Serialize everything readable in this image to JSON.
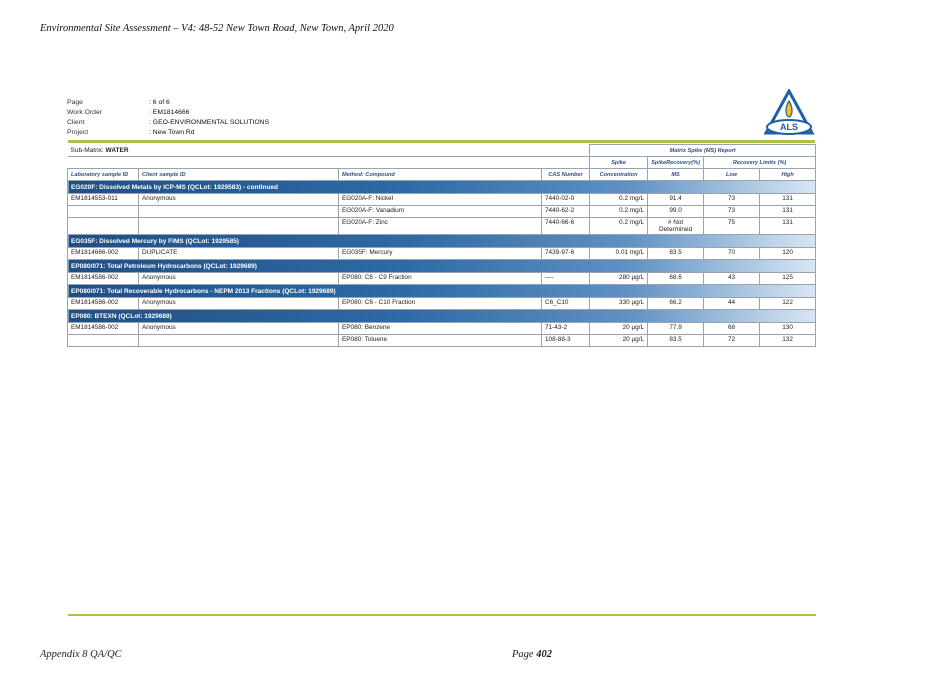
{
  "doc_header": "Environmental Site Assessment – V4: 48-52 New Town Road, New Town, April 2020",
  "meta": [
    {
      "label": "Page",
      "value": "6 of 6"
    },
    {
      "label": "Work Order",
      "value": "EM1814666"
    },
    {
      "label": "Client",
      "value": "GEO-ENVIRONMENTAL SOLUTIONS"
    },
    {
      "label": "Project",
      "value": "New Town Rd"
    }
  ],
  "logo_text": "ALS",
  "submatrix_label": "Sub-Matrix:",
  "submatrix_value": "WATER",
  "report_title": "Matrix Spike (MS) Report",
  "headers": {
    "spike": "Spike",
    "spike_recovery": "SpikeRecovery(%)",
    "recovery_limits": "Recovery Limits (%)",
    "lab_id": "Laboratory sample ID",
    "client_id": "Client sample ID",
    "method": "Method: Compound",
    "cas": "CAS Number",
    "concentration": "Concentration",
    "ms": "MS",
    "low": "Low",
    "high": "High"
  },
  "groups": [
    {
      "title": "EG020F: Dissolved Metals by ICP-MS  (QCLot: 1929583)  - continued",
      "rows": [
        {
          "lab": "EM1814553-011",
          "client": "Anonymous",
          "method": "EG020A-F: Nickel",
          "cas": "7440-02-0",
          "conc": "0.2 mg/L",
          "ms": "91.4",
          "low": "73",
          "high": "131"
        },
        {
          "lab": "",
          "client": "",
          "method": "EG020A-F: Vanadium",
          "cas": "7440-62-2",
          "conc": "0.2 mg/L",
          "ms": "99.0",
          "low": "73",
          "high": "131"
        },
        {
          "lab": "",
          "client": "",
          "method": "EG020A-F: Zinc",
          "cas": "7440-66-6",
          "conc": "0.2 mg/L",
          "ms": "# Not Determined",
          "low": "75",
          "high": "131"
        }
      ]
    },
    {
      "title": "EG035F: Dissolved Mercury by FIMS  (QCLot: 1929585)",
      "rows": [
        {
          "lab": "EM1814666-002",
          "client": "DUPLICATE",
          "method": "EG035F: Mercury",
          "cas": "7439-97-6",
          "conc": "0.01 mg/L",
          "ms": "83.5",
          "low": "70",
          "high": "120"
        }
      ]
    },
    {
      "title": "EP080/071: Total Petroleum Hydrocarbons  (QCLot: 1929689)",
      "rows": [
        {
          "lab": "EM1814586-002",
          "client": "Anonymous",
          "method": "EP080: C6 - C9 Fraction",
          "cas": "----",
          "conc": "280 µg/L",
          "ms": "68.6",
          "low": "43",
          "high": "125"
        }
      ]
    },
    {
      "title": "EP080/071: Total Recoverable Hydrocarbons - NEPM 2013 Fractions  (QCLot: 1929689)",
      "rows": [
        {
          "lab": "EM1814586-002",
          "client": "Anonymous",
          "method": "EP080: C6 - C10 Fraction",
          "cas": "C6_C10",
          "conc": "330 µg/L",
          "ms": "66.2",
          "low": "44",
          "high": "122"
        }
      ]
    },
    {
      "title": "EP080: BTEXN  (QCLot: 1929689)",
      "rows": [
        {
          "lab": "EM1814586-002",
          "client": "Anonymous",
          "method": "EP080: Benzene",
          "cas": "71-43-2",
          "conc": "20 µg/L",
          "ms": "77.9",
          "low": "68",
          "high": "130"
        },
        {
          "lab": "",
          "client": "",
          "method": "EP080: Toluene",
          "cas": "108-88-3",
          "conc": "20 µg/L",
          "ms": "83.5",
          "low": "72",
          "high": "132"
        }
      ]
    }
  ],
  "footer_left": "Appendix 8 QA/QC",
  "footer_page_label": "Page",
  "footer_page_number": "402",
  "colors": {
    "accent_green": "#a8c24a",
    "band_blue": "#1f4f84",
    "logo_blue": "#1f5fa8",
    "flame_yellow": "#f2c21a"
  }
}
